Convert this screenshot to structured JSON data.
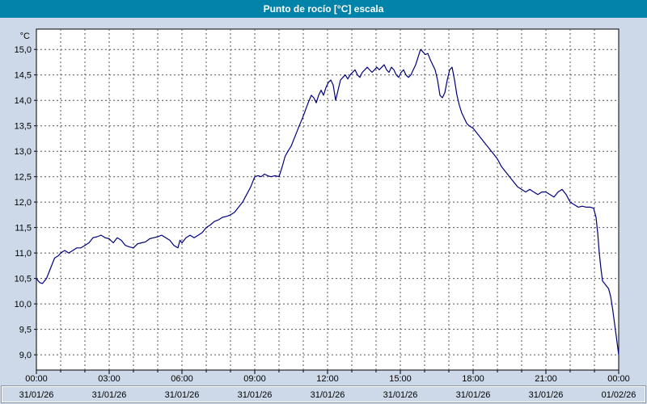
{
  "window": {
    "title": "Punto de rocío [°C] escala"
  },
  "colors": {
    "titlebar": "#0082a9",
    "titlebar_text": "#ffffff",
    "background": "#cdd9e8",
    "plot_bg": "#ffffff",
    "grid": "#555555",
    "axis": "#000000",
    "line": "#00007f",
    "panel_border_dark": "#8a97a8",
    "panel_border_light": "#ffffff"
  },
  "chart_data": {
    "type": "line",
    "title": "Punto de rocío [°C] escala",
    "ylabel": "°C",
    "ylim": [
      8.7,
      15.4
    ],
    "xlim_minutes": [
      0,
      1440
    ],
    "grid": "dashed; vertical every hour, horizontal every 0.5 °C",
    "legend_position": "none",
    "yticks": [
      {
        "value": 9.0,
        "label": "9,0"
      },
      {
        "value": 9.5,
        "label": "9,5"
      },
      {
        "value": 10.0,
        "label": "10,0"
      },
      {
        "value": 10.5,
        "label": "10,5"
      },
      {
        "value": 11.0,
        "label": "11,0"
      },
      {
        "value": 11.5,
        "label": "11,5"
      },
      {
        "value": 12.0,
        "label": "12,0"
      },
      {
        "value": 12.5,
        "label": "12,5"
      },
      {
        "value": 13.0,
        "label": "13,0"
      },
      {
        "value": 13.5,
        "label": "13,5"
      },
      {
        "value": 14.0,
        "label": "14,0"
      },
      {
        "value": 14.5,
        "label": "14,5"
      },
      {
        "value": 15.0,
        "label": "15,0"
      }
    ],
    "x_major_ticks": [
      {
        "minutes": 0,
        "time": "00:00",
        "date": "31/01/26"
      },
      {
        "minutes": 180,
        "time": "03:00",
        "date": "31/01/26"
      },
      {
        "minutes": 360,
        "time": "06:00",
        "date": "31/01/26"
      },
      {
        "minutes": 540,
        "time": "09:00",
        "date": "31/01/26"
      },
      {
        "minutes": 720,
        "time": "12:00",
        "date": "31/01/26"
      },
      {
        "minutes": 900,
        "time": "15:00",
        "date": "31/01/26"
      },
      {
        "minutes": 1080,
        "time": "18:00",
        "date": "31/01/26"
      },
      {
        "minutes": 1260,
        "time": "21:00",
        "date": "31/01/26"
      },
      {
        "minutes": 1440,
        "time": "00:00",
        "date": "01/02/26"
      }
    ],
    "series": [
      {
        "name": "Punto de rocío",
        "color": "#00007f",
        "points": [
          [
            0,
            10.5
          ],
          [
            8,
            10.42
          ],
          [
            15,
            10.4
          ],
          [
            25,
            10.5
          ],
          [
            35,
            10.7
          ],
          [
            45,
            10.9
          ],
          [
            55,
            10.95
          ],
          [
            60,
            11.0
          ],
          [
            70,
            11.05
          ],
          [
            80,
            11.0
          ],
          [
            90,
            11.05
          ],
          [
            100,
            11.1
          ],
          [
            110,
            11.1
          ],
          [
            120,
            11.15
          ],
          [
            130,
            11.2
          ],
          [
            140,
            11.3
          ],
          [
            150,
            11.32
          ],
          [
            160,
            11.35
          ],
          [
            170,
            11.3
          ],
          [
            180,
            11.28
          ],
          [
            190,
            11.2
          ],
          [
            200,
            11.3
          ],
          [
            210,
            11.25
          ],
          [
            220,
            11.15
          ],
          [
            230,
            11.12
          ],
          [
            240,
            11.1
          ],
          [
            250,
            11.18
          ],
          [
            260,
            11.2
          ],
          [
            270,
            11.22
          ],
          [
            280,
            11.28
          ],
          [
            290,
            11.3
          ],
          [
            300,
            11.32
          ],
          [
            310,
            11.35
          ],
          [
            320,
            11.3
          ],
          [
            330,
            11.25
          ],
          [
            340,
            11.15
          ],
          [
            350,
            11.1
          ],
          [
            355,
            11.25
          ],
          [
            360,
            11.2
          ],
          [
            370,
            11.3
          ],
          [
            380,
            11.35
          ],
          [
            390,
            11.3
          ],
          [
            400,
            11.35
          ],
          [
            410,
            11.4
          ],
          [
            420,
            11.5
          ],
          [
            430,
            11.55
          ],
          [
            440,
            11.62
          ],
          [
            450,
            11.65
          ],
          [
            460,
            11.7
          ],
          [
            470,
            11.72
          ],
          [
            480,
            11.75
          ],
          [
            490,
            11.8
          ],
          [
            500,
            11.9
          ],
          [
            510,
            12.0
          ],
          [
            520,
            12.15
          ],
          [
            530,
            12.3
          ],
          [
            540,
            12.5
          ],
          [
            548,
            12.52
          ],
          [
            556,
            12.5
          ],
          [
            564,
            12.55
          ],
          [
            572,
            12.52
          ],
          [
            580,
            12.5
          ],
          [
            590,
            12.52
          ],
          [
            600,
            12.5
          ],
          [
            608,
            12.7
          ],
          [
            615,
            12.9
          ],
          [
            622,
            13.0
          ],
          [
            630,
            13.1
          ],
          [
            640,
            13.3
          ],
          [
            650,
            13.5
          ],
          [
            658,
            13.65
          ],
          [
            665,
            13.8
          ],
          [
            672,
            13.95
          ],
          [
            680,
            14.1
          ],
          [
            686,
            14.05
          ],
          [
            692,
            13.95
          ],
          [
            698,
            14.1
          ],
          [
            704,
            14.2
          ],
          [
            710,
            14.1
          ],
          [
            716,
            14.25
          ],
          [
            722,
            14.35
          ],
          [
            728,
            14.4
          ],
          [
            734,
            14.3
          ],
          [
            740,
            14.0
          ],
          [
            746,
            14.2
          ],
          [
            752,
            14.4
          ],
          [
            758,
            14.45
          ],
          [
            764,
            14.5
          ],
          [
            770,
            14.42
          ],
          [
            776,
            14.5
          ],
          [
            782,
            14.55
          ],
          [
            788,
            14.6
          ],
          [
            794,
            14.5
          ],
          [
            800,
            14.45
          ],
          [
            806,
            14.55
          ],
          [
            812,
            14.6
          ],
          [
            818,
            14.65
          ],
          [
            824,
            14.6
          ],
          [
            830,
            14.55
          ],
          [
            836,
            14.6
          ],
          [
            842,
            14.65
          ],
          [
            848,
            14.6
          ],
          [
            854,
            14.65
          ],
          [
            860,
            14.7
          ],
          [
            866,
            14.6
          ],
          [
            872,
            14.55
          ],
          [
            878,
            14.65
          ],
          [
            884,
            14.6
          ],
          [
            890,
            14.5
          ],
          [
            896,
            14.45
          ],
          [
            902,
            14.55
          ],
          [
            908,
            14.6
          ],
          [
            914,
            14.5
          ],
          [
            920,
            14.45
          ],
          [
            926,
            14.5
          ],
          [
            932,
            14.6
          ],
          [
            938,
            14.7
          ],
          [
            944,
            14.85
          ],
          [
            950,
            15.0
          ],
          [
            956,
            14.95
          ],
          [
            962,
            14.9
          ],
          [
            968,
            14.92
          ],
          [
            974,
            14.8
          ],
          [
            980,
            14.7
          ],
          [
            986,
            14.6
          ],
          [
            992,
            14.4
          ],
          [
            998,
            14.1
          ],
          [
            1004,
            14.05
          ],
          [
            1010,
            14.15
          ],
          [
            1016,
            14.4
          ],
          [
            1022,
            14.6
          ],
          [
            1028,
            14.65
          ],
          [
            1034,
            14.4
          ],
          [
            1040,
            14.1
          ],
          [
            1046,
            13.9
          ],
          [
            1052,
            13.75
          ],
          [
            1058,
            13.65
          ],
          [
            1064,
            13.55
          ],
          [
            1070,
            13.5
          ],
          [
            1080,
            13.45
          ],
          [
            1090,
            13.35
          ],
          [
            1100,
            13.25
          ],
          [
            1110,
            13.15
          ],
          [
            1120,
            13.05
          ],
          [
            1130,
            12.95
          ],
          [
            1140,
            12.85
          ],
          [
            1150,
            12.7
          ],
          [
            1160,
            12.6
          ],
          [
            1170,
            12.5
          ],
          [
            1180,
            12.4
          ],
          [
            1190,
            12.3
          ],
          [
            1200,
            12.25
          ],
          [
            1210,
            12.2
          ],
          [
            1220,
            12.25
          ],
          [
            1230,
            12.2
          ],
          [
            1240,
            12.15
          ],
          [
            1250,
            12.2
          ],
          [
            1260,
            12.2
          ],
          [
            1270,
            12.15
          ],
          [
            1280,
            12.1
          ],
          [
            1290,
            12.2
          ],
          [
            1300,
            12.25
          ],
          [
            1310,
            12.15
          ],
          [
            1320,
            12.0
          ],
          [
            1330,
            11.95
          ],
          [
            1340,
            11.9
          ],
          [
            1350,
            11.92
          ],
          [
            1360,
            11.9
          ],
          [
            1370,
            11.9
          ],
          [
            1378,
            11.88
          ],
          [
            1384,
            11.7
          ],
          [
            1388,
            11.4
          ],
          [
            1392,
            11.0
          ],
          [
            1396,
            10.7
          ],
          [
            1400,
            10.45
          ],
          [
            1405,
            10.4
          ],
          [
            1410,
            10.35
          ],
          [
            1415,
            10.3
          ],
          [
            1420,
            10.15
          ],
          [
            1425,
            9.9
          ],
          [
            1430,
            9.6
          ],
          [
            1435,
            9.3
          ],
          [
            1440,
            9.0
          ]
        ]
      }
    ]
  }
}
